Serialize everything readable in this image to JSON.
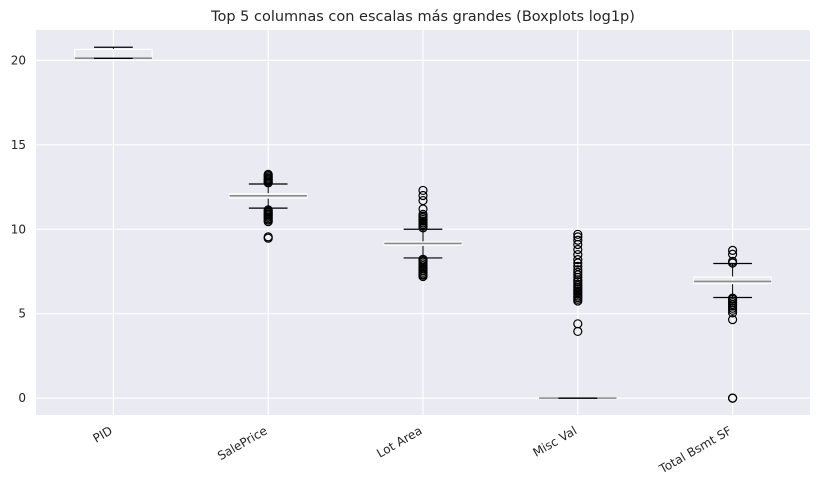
{
  "chart_data": {
    "type": "box",
    "title": "Top 5 columnas con escalas más grandes (Boxplots log1p)",
    "xlabel": "",
    "ylabel": "",
    "ylim": [
      -1.0,
      21.8
    ],
    "yticks": [
      0,
      5,
      10,
      15,
      20
    ],
    "grid": true,
    "categories": [
      "PID",
      "SalePrice",
      "Lot Area",
      "Misc Val",
      "Total Bsmt SF"
    ],
    "boxes": [
      {
        "name": "PID",
        "whislo": 20.12,
        "q1": 20.12,
        "median": 20.13,
        "q3": 20.65,
        "whishi": 20.78,
        "fliers": []
      },
      {
        "name": "SalePrice",
        "whislo": 11.25,
        "q1": 11.85,
        "median": 11.98,
        "q3": 12.1,
        "whishi": 12.68,
        "fliers": [
          9.47,
          9.55,
          10.45,
          10.55,
          10.62,
          10.7,
          10.78,
          10.85,
          10.92,
          11.0,
          11.08,
          11.15,
          12.75,
          12.8,
          12.88,
          12.95,
          13.02,
          13.1,
          13.18,
          13.25
        ]
      },
      {
        "name": "Lot Area",
        "whislo": 8.3,
        "q1": 9.05,
        "median": 9.16,
        "q3": 9.25,
        "whishi": 10.0,
        "fliers": [
          7.2,
          7.28,
          7.35,
          7.45,
          7.55,
          7.65,
          7.75,
          7.85,
          7.95,
          8.05,
          8.15,
          8.22,
          10.08,
          10.18,
          10.28,
          10.38,
          10.48,
          10.58,
          10.68,
          10.78,
          10.88,
          11.2,
          11.7,
          12.0,
          12.3
        ]
      },
      {
        "name": "Misc Val",
        "whislo": 0.0,
        "q1": 0.0,
        "median": 0.0,
        "q3": 0.0,
        "whishi": 0.0,
        "fliers": [
          3.95,
          4.4,
          5.75,
          5.85,
          5.95,
          6.05,
          6.15,
          6.25,
          6.35,
          6.45,
          6.55,
          6.65,
          6.75,
          6.9,
          7.0,
          7.15,
          7.3,
          7.45,
          7.6,
          7.8,
          8.0,
          8.2,
          8.5,
          8.8,
          9.1,
          9.35,
          9.55,
          9.7
        ]
      },
      {
        "name": "Total Bsmt SF",
        "whislo": 5.96,
        "q1": 6.78,
        "median": 6.91,
        "q3": 7.17,
        "whishi": 7.97,
        "fliers": [
          0.0,
          0.0,
          4.65,
          5.05,
          5.2,
          5.32,
          5.45,
          5.55,
          5.65,
          5.75,
          5.85,
          5.92,
          8.0,
          8.1,
          8.52,
          8.75
        ]
      }
    ],
    "colors": {
      "background": "#eaeaf2",
      "grid": "#ffffff",
      "box": "#ffffff",
      "median": "#8c8c8c",
      "whisker_cap": "#000000",
      "flier": "#000000",
      "text": "#262626"
    }
  }
}
